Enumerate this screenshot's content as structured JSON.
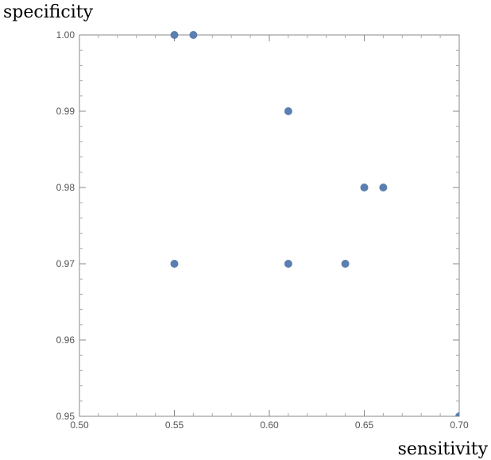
{
  "chart_data": {
    "type": "scatter",
    "title": "",
    "xlabel": "sensitivity",
    "ylabel": "specificity",
    "xlim": [
      0.5,
      0.7
    ],
    "ylim": [
      0.95,
      1.0
    ],
    "xticks": [
      "0.50",
      "0.55",
      "0.60",
      "0.65",
      "0.70"
    ],
    "yticks": [
      "0.95",
      "0.96",
      "0.97",
      "0.98",
      "0.99",
      "1.00"
    ],
    "grid": false,
    "legend": "none",
    "marker_color": "#5b7fb0",
    "points": [
      {
        "x": 0.55,
        "y": 1.0
      },
      {
        "x": 0.56,
        "y": 1.0
      },
      {
        "x": 0.61,
        "y": 0.99
      },
      {
        "x": 0.65,
        "y": 0.98
      },
      {
        "x": 0.66,
        "y": 0.98
      },
      {
        "x": 0.55,
        "y": 0.97
      },
      {
        "x": 0.61,
        "y": 0.97
      },
      {
        "x": 0.64,
        "y": 0.97
      },
      {
        "x": 0.7,
        "y": 0.95
      }
    ]
  }
}
